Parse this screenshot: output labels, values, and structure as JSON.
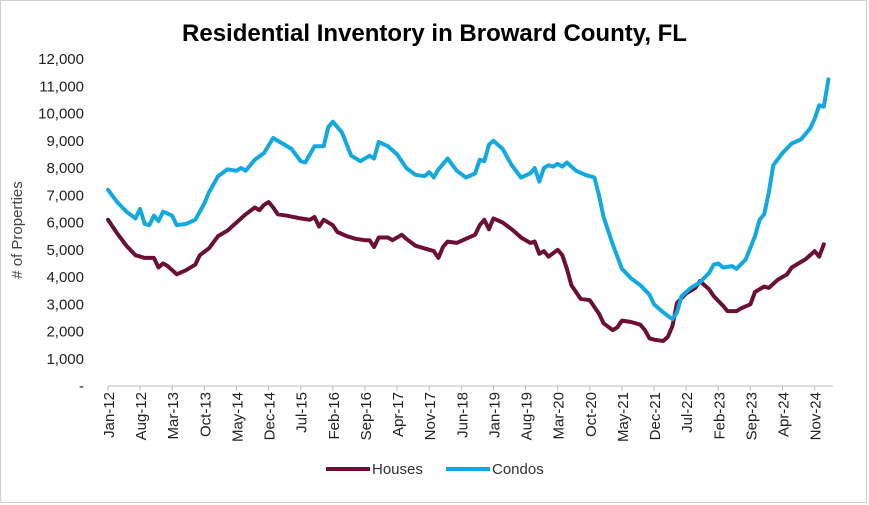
{
  "chart_data": {
    "type": "line",
    "title": "Residential Inventory in Broward County, FL",
    "ylabel": "# of Properties",
    "xlabel": "",
    "ylim": [
      0,
      12000
    ],
    "yticks": [
      0,
      1000,
      2000,
      3000,
      4000,
      5000,
      6000,
      7000,
      8000,
      9000,
      10000,
      11000,
      12000
    ],
    "ytick_labels": [
      "-",
      "1,000",
      "2,000",
      "3,000",
      "4,000",
      "5,000",
      "6,000",
      "7,000",
      "8,000",
      "9,000",
      "10,000",
      "11,000",
      "12,000"
    ],
    "x_tick_labels": [
      "Jan-12",
      "Aug-12",
      "Mar-13",
      "Oct-13",
      "May-14",
      "Dec-14",
      "Jul-15",
      "Feb-16",
      "Sep-16",
      "Apr-17",
      "Nov-17",
      "Jun-18",
      "Jan-19",
      "Aug-19",
      "Mar-20",
      "Oct-20",
      "May-21",
      "Dec-21",
      "Jul-22",
      "Feb-23",
      "Sep-23",
      "Apr-24",
      "Nov-24"
    ],
    "x_tick_step_months": 7,
    "x_start": "Jan-12",
    "x_end": "Jan-25",
    "legend_position": "bottom",
    "grid": false,
    "series": [
      {
        "name": "Houses",
        "color": "#6b0f35",
        "points": [
          [
            "Jan-12",
            6100
          ],
          [
            "Mar-12",
            5600
          ],
          [
            "May-12",
            5150
          ],
          [
            "Jul-12",
            4800
          ],
          [
            "Sep-12",
            4700
          ],
          [
            "Nov-12",
            4700
          ],
          [
            "Dec-12",
            4350
          ],
          [
            "Jan-13",
            4500
          ],
          [
            "Feb-13",
            4400
          ],
          [
            "Apr-13",
            4100
          ],
          [
            "Jun-13",
            4250
          ],
          [
            "Aug-13",
            4450
          ],
          [
            "Sep-13",
            4800
          ],
          [
            "Nov-13",
            5050
          ],
          [
            "Jan-14",
            5500
          ],
          [
            "Mar-14",
            5700
          ],
          [
            "May-14",
            6000
          ],
          [
            "Jul-14",
            6300
          ],
          [
            "Sep-14",
            6550
          ],
          [
            "Oct-14",
            6450
          ],
          [
            "Nov-14",
            6650
          ],
          [
            "Dec-14",
            6750
          ],
          [
            "Jan-15",
            6550
          ],
          [
            "Feb-15",
            6300
          ],
          [
            "Apr-15",
            6250
          ],
          [
            "Jul-15",
            6150
          ],
          [
            "Sep-15",
            6100
          ],
          [
            "Oct-15",
            6200
          ],
          [
            "Nov-15",
            5850
          ],
          [
            "Dec-15",
            6100
          ],
          [
            "Feb-16",
            5900
          ],
          [
            "Mar-16",
            5650
          ],
          [
            "May-16",
            5500
          ],
          [
            "Jul-16",
            5400
          ],
          [
            "Sep-16",
            5350
          ],
          [
            "Oct-16",
            5350
          ],
          [
            "Nov-16",
            5100
          ],
          [
            "Dec-16",
            5450
          ],
          [
            "Feb-17",
            5450
          ],
          [
            "Mar-17",
            5350
          ],
          [
            "May-17",
            5550
          ],
          [
            "Jun-17",
            5400
          ],
          [
            "Aug-17",
            5150
          ],
          [
            "Oct-17",
            5050
          ],
          [
            "Dec-17",
            4950
          ],
          [
            "Jan-18",
            4700
          ],
          [
            "Feb-18",
            5100
          ],
          [
            "Mar-18",
            5300
          ],
          [
            "May-18",
            5250
          ],
          [
            "Jul-18",
            5400
          ],
          [
            "Sep-18",
            5550
          ],
          [
            "Oct-18",
            5900
          ],
          [
            "Nov-18",
            6100
          ],
          [
            "Dec-18",
            5750
          ],
          [
            "Jan-19",
            6150
          ],
          [
            "Mar-19",
            6000
          ],
          [
            "May-19",
            5750
          ],
          [
            "Jul-19",
            5450
          ],
          [
            "Sep-19",
            5250
          ],
          [
            "Oct-19",
            5300
          ],
          [
            "Nov-19",
            4850
          ],
          [
            "Dec-19",
            4950
          ],
          [
            "Jan-20",
            4750
          ],
          [
            "Mar-20",
            5000
          ],
          [
            "Apr-20",
            4800
          ],
          [
            "May-20",
            4300
          ],
          [
            "Jun-20",
            3700
          ],
          [
            "Aug-20",
            3200
          ],
          [
            "Oct-20",
            3150
          ],
          [
            "Dec-20",
            2650
          ],
          [
            "Jan-21",
            2300
          ],
          [
            "Mar-21",
            2050
          ],
          [
            "Apr-21",
            2150
          ],
          [
            "May-21",
            2400
          ],
          [
            "Jul-21",
            2350
          ],
          [
            "Sep-21",
            2250
          ],
          [
            "Oct-21",
            2050
          ],
          [
            "Nov-21",
            1750
          ],
          [
            "Dec-21",
            1700
          ],
          [
            "Feb-22",
            1650
          ],
          [
            "Mar-22",
            1800
          ],
          [
            "Apr-22",
            2200
          ],
          [
            "May-22",
            3050
          ],
          [
            "Jul-22",
            3400
          ],
          [
            "Sep-22",
            3600
          ],
          [
            "Oct-22",
            3850
          ],
          [
            "Dec-22",
            3550
          ],
          [
            "Jan-23",
            3300
          ],
          [
            "Mar-23",
            2950
          ],
          [
            "Apr-23",
            2750
          ],
          [
            "Jun-23",
            2750
          ],
          [
            "Jul-23",
            2850
          ],
          [
            "Sep-23",
            3000
          ],
          [
            "Oct-23",
            3450
          ],
          [
            "Dec-23",
            3650
          ],
          [
            "Jan-24",
            3600
          ],
          [
            "Mar-24",
            3900
          ],
          [
            "May-24",
            4100
          ],
          [
            "Jun-24",
            4350
          ],
          [
            "Aug-24",
            4550
          ],
          [
            "Sep-24",
            4650
          ],
          [
            "Oct-24",
            4800
          ],
          [
            "Nov-24",
            4950
          ],
          [
            "Dec-24",
            4750
          ],
          [
            "Jan-25",
            5200
          ]
        ]
      },
      {
        "name": "Condos",
        "color": "#12a9e0",
        "points": [
          [
            "Jan-12",
            7200
          ],
          [
            "Mar-12",
            6750
          ],
          [
            "May-12",
            6400
          ],
          [
            "Jul-12",
            6150
          ],
          [
            "Aug-12",
            6500
          ],
          [
            "Sep-12",
            5950
          ],
          [
            "Oct-12",
            5900
          ],
          [
            "Nov-12",
            6250
          ],
          [
            "Dec-12",
            6050
          ],
          [
            "Jan-13",
            6400
          ],
          [
            "Mar-13",
            6250
          ],
          [
            "Apr-13",
            5900
          ],
          [
            "Jun-13",
            5950
          ],
          [
            "Aug-13",
            6100
          ],
          [
            "Oct-13",
            6700
          ],
          [
            "Nov-13",
            7100
          ],
          [
            "Jan-14",
            7700
          ],
          [
            "Mar-14",
            7950
          ],
          [
            "May-14",
            7900
          ],
          [
            "Jun-14",
            8000
          ],
          [
            "Jul-14",
            7900
          ],
          [
            "Sep-14",
            8300
          ],
          [
            "Nov-14",
            8550
          ],
          [
            "Jan-15",
            9100
          ],
          [
            "Mar-15",
            8900
          ],
          [
            "May-15",
            8700
          ],
          [
            "Jul-15",
            8250
          ],
          [
            "Aug-15",
            8200
          ],
          [
            "Sep-15",
            8500
          ],
          [
            "Oct-15",
            8800
          ],
          [
            "Dec-15",
            8800
          ],
          [
            "Jan-16",
            9500
          ],
          [
            "Feb-16",
            9700
          ],
          [
            "Apr-16",
            9300
          ],
          [
            "Jun-16",
            8450
          ],
          [
            "Aug-16",
            8250
          ],
          [
            "Oct-16",
            8450
          ],
          [
            "Nov-16",
            8350
          ],
          [
            "Dec-16",
            8950
          ],
          [
            "Feb-17",
            8800
          ],
          [
            "Apr-17",
            8500
          ],
          [
            "Jun-17",
            8000
          ],
          [
            "Aug-17",
            7750
          ],
          [
            "Oct-17",
            7700
          ],
          [
            "Nov-17",
            7850
          ],
          [
            "Dec-17",
            7650
          ],
          [
            "Jan-18",
            7950
          ],
          [
            "Mar-18",
            8350
          ],
          [
            "May-18",
            7900
          ],
          [
            "Jul-18",
            7650
          ],
          [
            "Sep-18",
            7800
          ],
          [
            "Oct-18",
            8300
          ],
          [
            "Nov-18",
            8250
          ],
          [
            "Dec-18",
            8850
          ],
          [
            "Jan-19",
            9000
          ],
          [
            "Mar-19",
            8700
          ],
          [
            "May-19",
            8100
          ],
          [
            "Jul-19",
            7650
          ],
          [
            "Sep-19",
            7800
          ],
          [
            "Oct-19",
            8000
          ],
          [
            "Nov-19",
            7500
          ],
          [
            "Dec-19",
            8000
          ],
          [
            "Jan-20",
            8100
          ],
          [
            "Feb-20",
            8050
          ],
          [
            "Mar-20",
            8150
          ],
          [
            "Apr-20",
            8050
          ],
          [
            "May-20",
            8200
          ],
          [
            "Jul-20",
            7900
          ],
          [
            "Sep-20",
            7750
          ],
          [
            "Nov-20",
            7650
          ],
          [
            "Dec-20",
            7000
          ],
          [
            "Jan-21",
            6200
          ],
          [
            "Mar-21",
            5200
          ],
          [
            "May-21",
            4300
          ],
          [
            "Jul-21",
            3950
          ],
          [
            "Sep-21",
            3700
          ],
          [
            "Nov-21",
            3350
          ],
          [
            "Dec-21",
            3000
          ],
          [
            "Feb-22",
            2700
          ],
          [
            "Apr-22",
            2450
          ],
          [
            "May-22",
            2700
          ],
          [
            "Jun-22",
            3300
          ],
          [
            "Aug-22",
            3600
          ],
          [
            "Oct-22",
            3800
          ],
          [
            "Dec-22",
            4150
          ],
          [
            "Jan-23",
            4450
          ],
          [
            "Feb-23",
            4500
          ],
          [
            "Mar-23",
            4350
          ],
          [
            "May-23",
            4400
          ],
          [
            "Jun-23",
            4300
          ],
          [
            "Aug-23",
            4650
          ],
          [
            "Oct-23",
            5500
          ],
          [
            "Nov-23",
            6100
          ],
          [
            "Dec-23",
            6300
          ],
          [
            "Jan-24",
            7100
          ],
          [
            "Feb-24",
            8100
          ],
          [
            "Apr-24",
            8550
          ],
          [
            "Jun-24",
            8900
          ],
          [
            "Aug-24",
            9050
          ],
          [
            "Oct-24",
            9450
          ],
          [
            "Nov-24",
            9800
          ],
          [
            "Dec-24",
            10300
          ],
          [
            "Jan-25",
            10250
          ],
          [
            "Feb-25",
            11250
          ]
        ]
      }
    ]
  }
}
